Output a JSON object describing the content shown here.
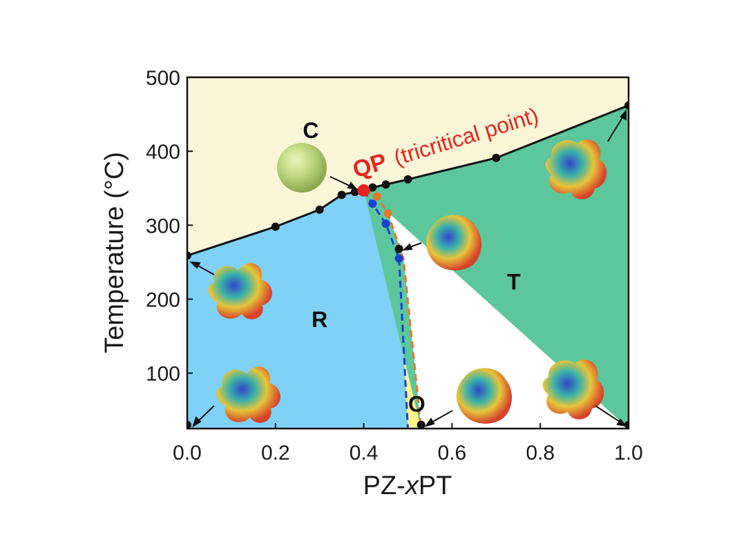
{
  "chart_data": {
    "type": "line",
    "title": "",
    "xlabel_prefix": "PZ-",
    "xlabel_var": "x",
    "xlabel_suffix": "PT",
    "ylabel": "Temperature (°C)",
    "xlim": [
      0.0,
      1.0
    ],
    "ylim": [
      25,
      500
    ],
    "x_ticks": [
      "0.0",
      "0.2",
      "0.4",
      "0.6",
      "0.8",
      "1.0"
    ],
    "x_tick_values": [
      0.0,
      0.2,
      0.4,
      0.6,
      0.8,
      1.0
    ],
    "y_ticks": [
      "100",
      "200",
      "300",
      "400",
      "500"
    ],
    "y_tick_values": [
      100,
      200,
      300,
      400,
      500
    ],
    "grid": false,
    "colors": {
      "cubic": "#fbf6d8",
      "rhombohedral": "#7fd1f5",
      "tetragonal": "#5cc79c",
      "orthorhombic": "#fdf48c",
      "boundary": "#111111",
      "qp": "#e52521",
      "r_o_boundary": "#1a3fd1",
      "o_t_boundary": "#e8762c"
    },
    "series": [
      {
        "role": "curie-boundary",
        "x": [
          0.0,
          0.2,
          0.3,
          0.35,
          0.38,
          0.42,
          0.45,
          0.5,
          0.7,
          1.0
        ],
        "y": [
          259,
          298,
          321,
          341,
          345,
          351,
          355,
          362,
          391,
          462
        ]
      },
      {
        "role": "r-o-boundary",
        "x": [
          0.4,
          0.42,
          0.45,
          0.48,
          0.5
        ],
        "y": [
          347,
          329,
          302,
          255,
          25
        ]
      },
      {
        "role": "o-t-boundary",
        "x": [
          0.4,
          0.43,
          0.455,
          0.49,
          0.53
        ],
        "y": [
          347,
          339,
          316,
          255,
          25
        ]
      },
      {
        "role": "extra-markers",
        "x": [
          0.0,
          0.48,
          0.53,
          1.0
        ],
        "y": [
          30,
          268,
          30,
          30
        ]
      }
    ],
    "qp_point": {
      "x": 0.4,
      "y": 347
    },
    "phase_labels": [
      {
        "text": "C",
        "x": 0.28,
        "y": 418
      },
      {
        "text": "R",
        "x": 0.3,
        "y": 162
      },
      {
        "text": "T",
        "x": 0.74,
        "y": 213
      },
      {
        "text": "O",
        "x": 0.52,
        "y": 48
      }
    ],
    "qp_label": "QP",
    "qp_annotation": "(tricritical point)"
  }
}
